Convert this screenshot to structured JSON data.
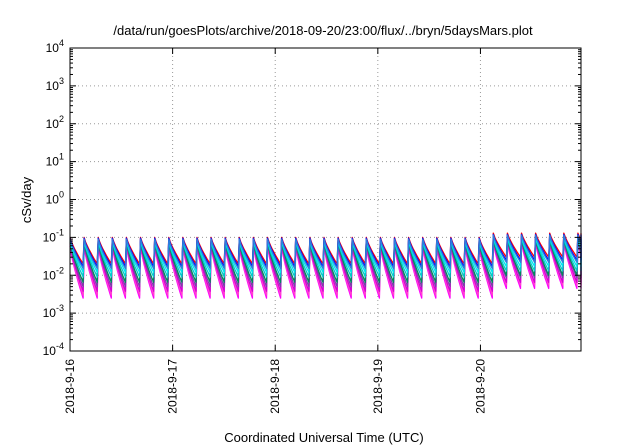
{
  "chart_data": {
    "type": "line",
    "title": "/data/run/goesPlots/archive/2018-09-20/23:00/flux/../bryn/5daysMars.plot",
    "xlabel": "Coordinated Universal Time (UTC)",
    "ylabel": "cSv/day",
    "y_scale": "log",
    "ylim": [
      0.0001,
      10000
    ],
    "xlim_days": [
      0,
      4.98
    ],
    "grid": true,
    "y_ticks": [
      {
        "value": 0.0001,
        "base": "10",
        "exp": "-4"
      },
      {
        "value": 0.001,
        "base": "10",
        "exp": "-3"
      },
      {
        "value": 0.01,
        "base": "10",
        "exp": "-2"
      },
      {
        "value": 0.1,
        "base": "10",
        "exp": "-1"
      },
      {
        "value": 1,
        "base": "10",
        "exp": "0"
      },
      {
        "value": 10,
        "base": "10",
        "exp": "1"
      },
      {
        "value": 100,
        "base": "10",
        "exp": "2"
      },
      {
        "value": 1000,
        "base": "10",
        "exp": "3"
      },
      {
        "value": 10000,
        "base": "10",
        "exp": "4"
      }
    ],
    "x_ticks": [
      {
        "value": 0,
        "label": "2018-9-16"
      },
      {
        "value": 1,
        "label": "2018-9-17"
      },
      {
        "value": 2,
        "label": "2018-9-18"
      },
      {
        "value": 3,
        "label": "2018-9-19"
      },
      {
        "value": 4,
        "label": "2018-9-20"
      }
    ],
    "cycle_days": 0.1375,
    "series": [
      {
        "color": "#ff00ff",
        "peak": 0.058,
        "low": 0.0025,
        "peak_late": 0.075,
        "low_late": 0.0045
      },
      {
        "color": "#ff44cc",
        "peak": 0.06,
        "low": 0.003,
        "peak_late": 0.078,
        "low_late": 0.0055
      },
      {
        "color": "#d400d4",
        "peak": 0.065,
        "low": 0.0038,
        "peak_late": 0.082,
        "low_late": 0.0065
      },
      {
        "color": "#7b3fa8",
        "peak": 0.07,
        "low": 0.005,
        "peak_late": 0.088,
        "low_late": 0.0085
      },
      {
        "color": "#008b5a",
        "peak": 0.075,
        "low": 0.0065,
        "peak_late": 0.092,
        "low_late": 0.01
      },
      {
        "color": "#00cccc",
        "peak": 0.08,
        "low": 0.009,
        "peak_late": 0.098,
        "low_late": 0.013
      },
      {
        "color": "#00e5ee",
        "peak": 0.085,
        "low": 0.012,
        "peak_late": 0.105,
        "low_late": 0.017
      },
      {
        "color": "#ff0000",
        "peak": 0.1,
        "low": 0.02,
        "peak_late": 0.13,
        "low_late": 0.03
      },
      {
        "color": "#0000ff",
        "peak": 0.095,
        "low": 0.017,
        "peak_late": 0.12,
        "low_late": 0.025
      },
      {
        "color": "#2f7ddc",
        "peak": 0.09,
        "low": 0.015,
        "peak_late": 0.115,
        "low_late": 0.022
      }
    ]
  }
}
